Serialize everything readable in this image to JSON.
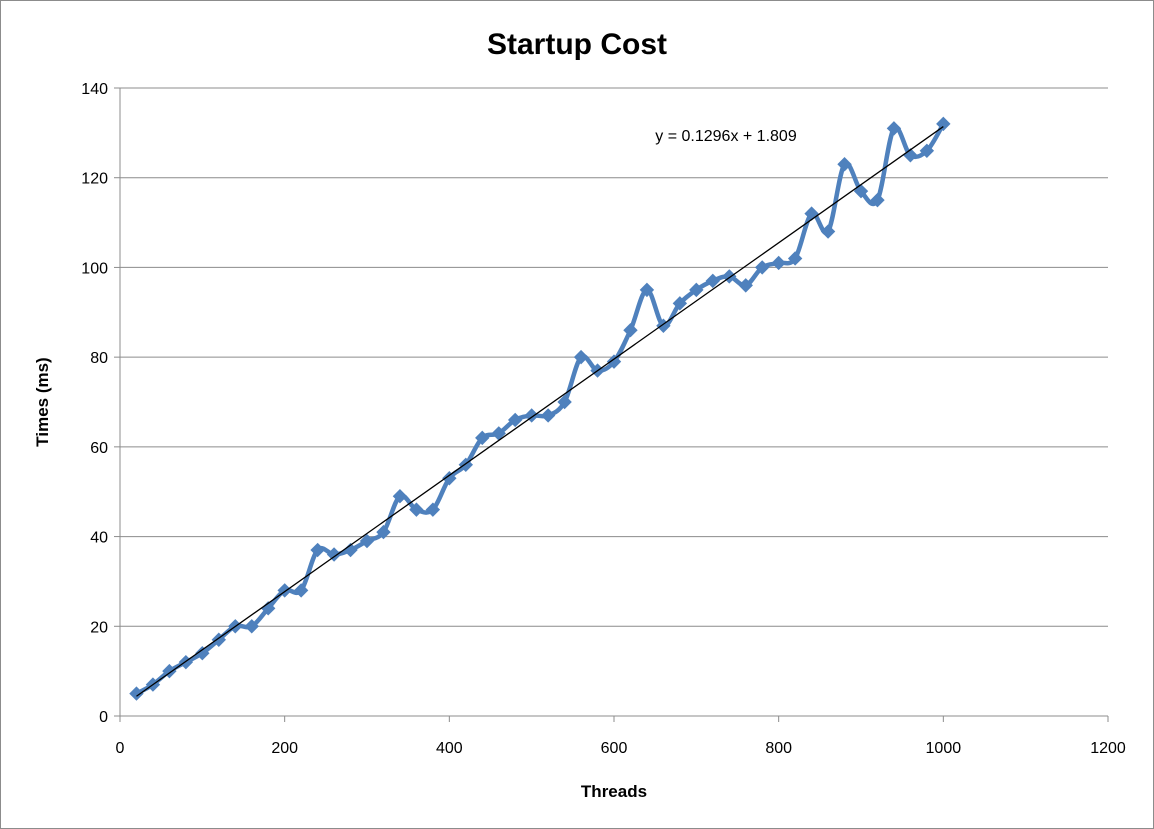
{
  "chart_data": {
    "type": "line",
    "title": "Startup Cost",
    "xlabel": "Threads",
    "ylabel": "Times (ms)",
    "xlim": [
      0,
      1200
    ],
    "ylim": [
      0,
      140
    ],
    "xticks": [
      0,
      200,
      400,
      600,
      800,
      1000,
      1200
    ],
    "yticks": [
      0,
      20,
      40,
      60,
      80,
      100,
      120,
      140
    ],
    "grid": "horizontal",
    "legend": "none",
    "series": [
      {
        "x": [
          20,
          40,
          60,
          80,
          100,
          120,
          140,
          160,
          180,
          200,
          220,
          240,
          260,
          280,
          300,
          320,
          340,
          360,
          380,
          400,
          420,
          440,
          460,
          480,
          500,
          520,
          540,
          560,
          580,
          600,
          620,
          640,
          660,
          680,
          700,
          720,
          740,
          760,
          780,
          800,
          820,
          840,
          860,
          880,
          900,
          920,
          940,
          960,
          980,
          1000
        ],
        "values": [
          5,
          7,
          10,
          12,
          14,
          17,
          20,
          20,
          24,
          28,
          28,
          37,
          36,
          37,
          39,
          41,
          49,
          46,
          46,
          53,
          56,
          62,
          63,
          66,
          67,
          67,
          70,
          80,
          77,
          79,
          86,
          95,
          87,
          92,
          95,
          97,
          98,
          96,
          100,
          101,
          102,
          112,
          108,
          123,
          117,
          115,
          131,
          125,
          126,
          132
        ],
        "color": "#4f81bd",
        "marker": "diamond"
      }
    ],
    "trendline": {
      "type": "linear",
      "slope": 0.1296,
      "intercept": 1.809,
      "x_range": [
        20,
        1000
      ],
      "color": "#000000",
      "equation_label": "y = 0.1296x + 1.809"
    }
  }
}
